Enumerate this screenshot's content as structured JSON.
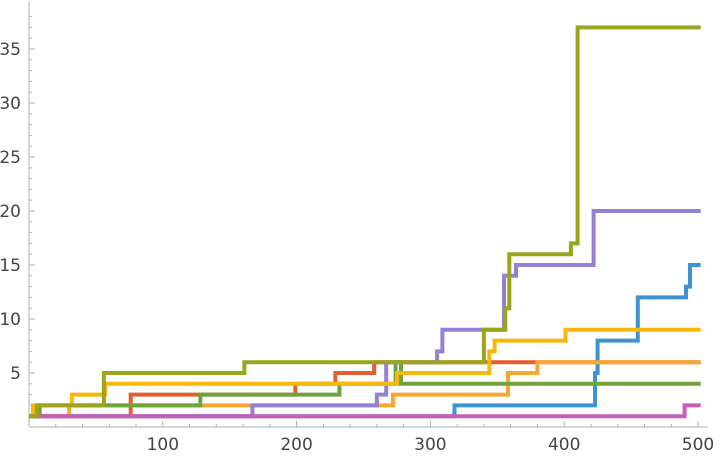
{
  "chart_data": {
    "type": "line",
    "step": true,
    "title": "",
    "xlabel": "",
    "ylabel": "",
    "xlim": [
      0,
      502
    ],
    "ylim": [
      0,
      38
    ],
    "x_ticks": [
      100,
      200,
      300,
      400,
      500
    ],
    "y_ticks": [
      5,
      10,
      15,
      20,
      25,
      30,
      35
    ],
    "grid": false,
    "legend": "none",
    "series": [
      {
        "color": "#3e94d1",
        "points": [
          [
            0,
            1
          ],
          [
            318,
            1
          ],
          [
            318,
            2
          ],
          [
            423,
            2
          ],
          [
            423,
            5
          ],
          [
            425,
            5
          ],
          [
            425,
            8
          ],
          [
            455,
            8
          ],
          [
            455,
            12
          ],
          [
            491,
            12
          ],
          [
            491,
            13
          ],
          [
            494,
            13
          ],
          [
            494,
            15
          ],
          [
            502,
            15
          ]
        ]
      },
      {
        "color": "#e35f30",
        "points": [
          [
            0,
            1
          ],
          [
            76,
            1
          ],
          [
            76,
            3
          ],
          [
            199,
            3
          ],
          [
            199,
            4
          ],
          [
            229,
            4
          ],
          [
            229,
            5
          ],
          [
            258,
            5
          ],
          [
            258,
            6
          ],
          [
            502,
            6
          ]
        ]
      },
      {
        "color": "#f5a931",
        "points": [
          [
            0,
            1
          ],
          [
            30,
            1
          ],
          [
            30,
            2
          ],
          [
            147,
            2
          ],
          [
            147,
            2
          ],
          [
            268,
            2
          ],
          [
            268,
            2
          ],
          [
            272,
            2
          ],
          [
            272,
            3
          ],
          [
            358,
            3
          ],
          [
            358,
            5
          ],
          [
            380,
            5
          ],
          [
            380,
            6
          ],
          [
            502,
            6
          ]
        ]
      },
      {
        "color": "#6da53b",
        "points": [
          [
            0,
            1
          ],
          [
            8,
            1
          ],
          [
            8,
            2
          ],
          [
            128,
            2
          ],
          [
            128,
            3
          ],
          [
            232,
            3
          ],
          [
            232,
            4
          ],
          [
            274,
            4
          ],
          [
            274,
            6
          ],
          [
            278,
            6
          ],
          [
            278,
            4
          ],
          [
            502,
            4
          ]
        ]
      },
      {
        "color": "#9580d4",
        "points": [
          [
            0,
            1
          ],
          [
            167,
            1
          ],
          [
            167,
            2
          ],
          [
            260,
            2
          ],
          [
            260,
            3
          ],
          [
            267,
            3
          ],
          [
            267,
            6
          ],
          [
            305,
            6
          ],
          [
            305,
            7
          ],
          [
            309,
            7
          ],
          [
            309,
            9
          ],
          [
            355,
            9
          ],
          [
            355,
            14
          ],
          [
            364,
            14
          ],
          [
            364,
            15
          ],
          [
            422,
            15
          ],
          [
            422,
            20
          ],
          [
            502,
            20
          ]
        ]
      },
      {
        "color": "#f7b80b",
        "points": [
          [
            0,
            1
          ],
          [
            3,
            1
          ],
          [
            3,
            2
          ],
          [
            32,
            2
          ],
          [
            32,
            3
          ],
          [
            57,
            3
          ],
          [
            57,
            4
          ],
          [
            275,
            4
          ],
          [
            275,
            5
          ],
          [
            344,
            5
          ],
          [
            344,
            7
          ],
          [
            348,
            7
          ],
          [
            348,
            8
          ],
          [
            401,
            8
          ],
          [
            401,
            9
          ],
          [
            502,
            9
          ]
        ]
      },
      {
        "color": "#c85fb2",
        "points": [
          [
            0,
            1
          ],
          [
            490,
            1
          ],
          [
            490,
            2
          ],
          [
            502,
            2
          ]
        ]
      },
      {
        "color": "#9aa51b",
        "points": [
          [
            0,
            1
          ],
          [
            6,
            1
          ],
          [
            6,
            2
          ],
          [
            56,
            2
          ],
          [
            56,
            5
          ],
          [
            161,
            5
          ],
          [
            161,
            6
          ],
          [
            340,
            6
          ],
          [
            340,
            9
          ],
          [
            356,
            9
          ],
          [
            356,
            11
          ],
          [
            359,
            11
          ],
          [
            359,
            16
          ],
          [
            405,
            16
          ],
          [
            405,
            17
          ],
          [
            410,
            17
          ],
          [
            410,
            37
          ],
          [
            502,
            37
          ]
        ]
      }
    ]
  }
}
